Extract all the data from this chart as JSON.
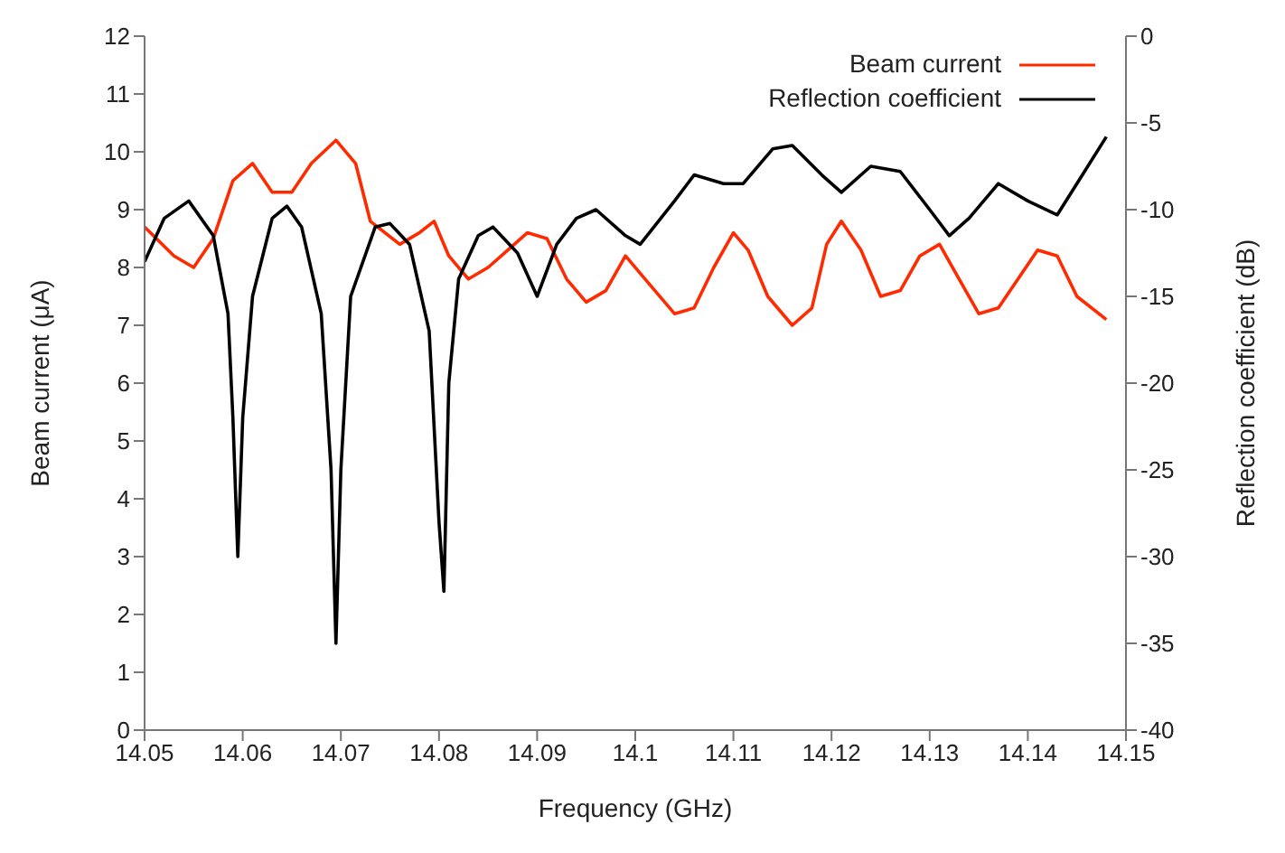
{
  "chart_data": {
    "type": "line",
    "xlabel": "Frequency (GHz)",
    "ylabel": "Beam current (μA)",
    "y2label": "Reflection coefficient (dB)",
    "xlim": [
      14.05,
      14.15
    ],
    "xticks": [
      14.05,
      14.06,
      14.07,
      14.08,
      14.09,
      14.1,
      14.11,
      14.12,
      14.13,
      14.14,
      14.15
    ],
    "ylim": [
      0,
      12
    ],
    "yticks": [
      0,
      1,
      2,
      3,
      4,
      5,
      6,
      7,
      8,
      9,
      10,
      11,
      12
    ],
    "y2lim": [
      -40,
      0
    ],
    "y2ticks": [
      -40,
      -35,
      -30,
      -25,
      -20,
      -15,
      -10,
      -5,
      0
    ],
    "grid": false,
    "legend": "top right",
    "marker": "none",
    "line_style": "solid",
    "series": [
      {
        "name": "Beam current",
        "color": "#ff2a00",
        "x": [
          14.05,
          14.053,
          14.055,
          14.057,
          14.059,
          14.061,
          14.063,
          14.065,
          14.067,
          14.0695,
          14.0715,
          14.073,
          14.076,
          14.078,
          14.0795,
          14.081,
          14.083,
          14.085,
          14.087,
          14.089,
          14.091,
          14.093,
          14.095,
          14.097,
          14.099,
          14.101,
          14.104,
          14.106,
          14.108,
          14.11,
          14.1115,
          14.1135,
          14.116,
          14.118,
          14.1195,
          14.121,
          14.123,
          14.125,
          14.127,
          14.129,
          14.131,
          14.133,
          14.135,
          14.137,
          14.139,
          14.141,
          14.143,
          14.145,
          14.148
        ],
        "values": [
          8.7,
          8.2,
          8,
          8.5,
          9.5,
          9.8,
          9.3,
          9.3,
          9.8,
          10.2,
          9.8,
          8.8,
          8.4,
          8.6,
          8.8,
          8.2,
          7.8,
          8,
          8.3,
          8.6,
          8.5,
          7.8,
          7.4,
          7.6,
          8.2,
          7.8,
          7.2,
          7.3,
          8,
          8.6,
          8.3,
          7.5,
          7,
          7.3,
          8.4,
          8.8,
          8.3,
          7.5,
          7.6,
          8.2,
          8.4,
          7.8,
          7.2,
          7.3,
          7.8,
          8.3,
          8.2,
          7.5,
          7.1
        ]
      },
      {
        "name": "Reflection coefficient",
        "color": "#000000",
        "axis": "y2",
        "x": [
          14.05,
          14.052,
          14.0545,
          14.057,
          14.0585,
          14.059,
          14.0595,
          14.06,
          14.061,
          14.063,
          14.0645,
          14.066,
          14.068,
          14.069,
          14.0695,
          14.07,
          14.071,
          14.0735,
          14.075,
          14.077,
          14.079,
          14.08,
          14.0805,
          14.081,
          14.082,
          14.084,
          14.0855,
          14.088,
          14.09,
          14.092,
          14.094,
          14.096,
          14.099,
          14.1005,
          14.104,
          14.106,
          14.109,
          14.111,
          14.114,
          14.116,
          14.119,
          14.121,
          14.124,
          14.127,
          14.13,
          14.132,
          14.134,
          14.137,
          14.14,
          14.143,
          14.145,
          14.148
        ],
        "values": [
          -13,
          -10.5,
          -9.5,
          -11.5,
          -16,
          -22,
          -30,
          -22,
          -15,
          -10.5,
          -9.8,
          -11,
          -16,
          -25,
          -35,
          -25,
          -15,
          -11,
          -10.8,
          -12,
          -17,
          -28,
          -32,
          -20,
          -14,
          -11.5,
          -11,
          -12.5,
          -15,
          -12,
          -10.5,
          -10,
          -11.5,
          -12,
          -9.5,
          -8,
          -8.5,
          -8.5,
          -6.5,
          -6.3,
          -8,
          -9,
          -7.5,
          -7.8,
          -10,
          -11.5,
          -10.5,
          -8.5,
          -9.5,
          -10.3,
          -8.5,
          -5.8
        ]
      }
    ]
  }
}
